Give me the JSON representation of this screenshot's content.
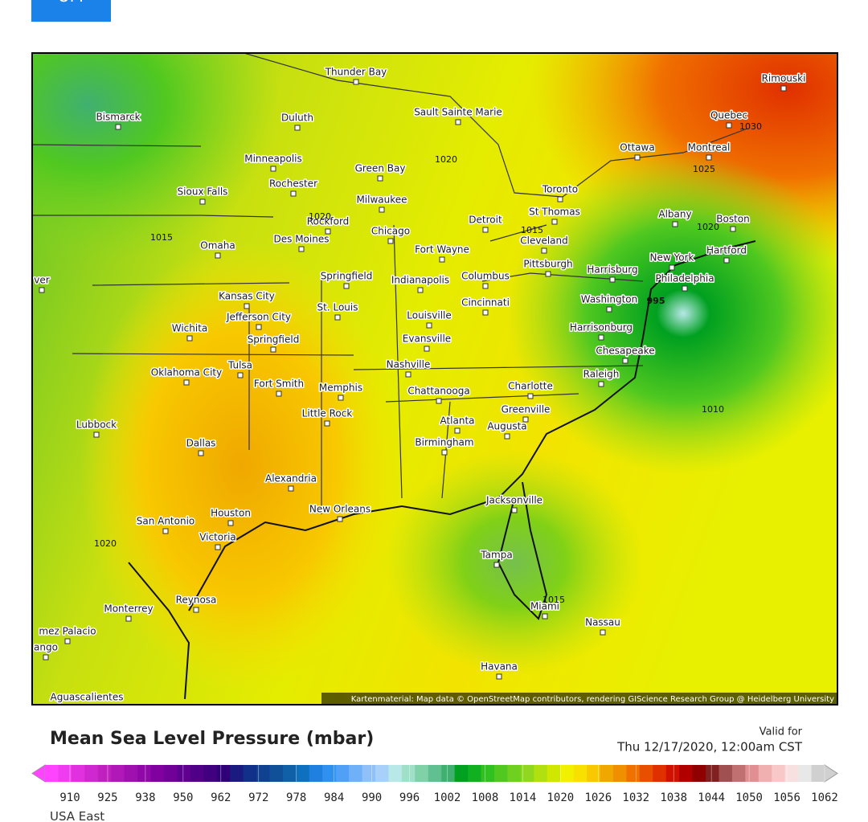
{
  "button": {
    "label": "UM"
  },
  "map": {
    "cities": [
      "Thunder Bay",
      "Bismarck",
      "Duluth",
      "Sault Sainte Marie",
      "Minneapolis",
      "Green Bay",
      "Ottawa",
      "Montreal",
      "Quebec",
      "Rimouski",
      "Sioux Falls",
      "Rochester",
      "Milwaukee",
      "Toronto",
      "Rockford",
      "Detroit",
      "St Thomas",
      "Albany",
      "Boston",
      "Omaha",
      "Des Moines",
      "Chicago",
      "Cleveland",
      "Hartford",
      "Fort Wayne",
      "Pittsburgh",
      "Harrisburg",
      "New York",
      "Springfield",
      "Indianapolis",
      "Columbus",
      "Philadelphia",
      "ver",
      "Kansas City",
      "Jefferson City",
      "St. Louis",
      "Cincinnati",
      "Washington",
      "Louisville",
      "Harrisonburg",
      "Wichita",
      "Springfield",
      "Evansville",
      "Chesapeake",
      "Oklahoma City",
      "Tulsa",
      "Fort Smith",
      "Memphis",
      "Nashville",
      "Raleigh",
      "Chattanooga",
      "Charlotte",
      "Greenville",
      "Little Rock",
      "Lubbock",
      "Atlanta",
      "Augusta",
      "Birmingham",
      "Dallas",
      "Alexandria",
      "Jacksonville",
      "New Orleans",
      "Houston",
      "San Antonio",
      "Victoria",
      "Tampa",
      "Miami",
      "Reynosa",
      "Monterrey",
      "Nassau",
      "mez Palacio",
      "ango",
      "Havana",
      "Aguascalientes"
    ],
    "isobars": [
      "1020",
      "1015",
      "1020",
      "1010",
      "1015",
      "1025",
      "1020",
      "1030",
      "1015",
      "1020",
      "995"
    ],
    "attribution": "Kartenmaterial: Map data © OpenStreetMap contributors, rendering GIScience Research Group @ Heidelberg University"
  },
  "legend": {
    "title": "Mean Sea Level Pressure (mbar)",
    "valid_label": "Valid for",
    "valid_time": "Thu 12/17/2020, 12:00am CST",
    "colors": [
      "#ff44ff",
      "#f03cf0",
      "#e030e0",
      "#d028d0",
      "#c020c0",
      "#b018b8",
      "#a010b0",
      "#9008a8",
      "#8000a0",
      "#700098",
      "#600090",
      "#500088",
      "#400080",
      "#300078",
      "#1a1a80",
      "#10308a",
      "#104090",
      "#105098",
      "#1060a8",
      "#1070c0",
      "#2080e0",
      "#3090f0",
      "#50a0f8",
      "#70b0f8",
      "#90c0f8",
      "#a8d0f8",
      "#b8e8e8",
      "#a0e0c8",
      "#80d0a8",
      "#60c090",
      "#40b070",
      "#00a020",
      "#10b020",
      "#30c020",
      "#50c820",
      "#70d020",
      "#90d820",
      "#b0e010",
      "#d0e800",
      "#f0f000",
      "#f8e000",
      "#f8c800",
      "#f0a800",
      "#f09000",
      "#f07000",
      "#e85000",
      "#e03000",
      "#d01000",
      "#b00000",
      "#900000",
      "#802020",
      "#a05050",
      "#c07070",
      "#e09090",
      "#f0b0b0",
      "#f8c8c8",
      "#f8e0e0",
      "#e8e8e8",
      "#d0d0d0"
    ],
    "labels": [
      910,
      925,
      938,
      950,
      962,
      972,
      978,
      984,
      990,
      996,
      1002,
      1008,
      1014,
      1020,
      1026,
      1032,
      1038,
      1044,
      1050,
      1056,
      1062
    ]
  },
  "footer": {
    "region": "USA East"
  }
}
